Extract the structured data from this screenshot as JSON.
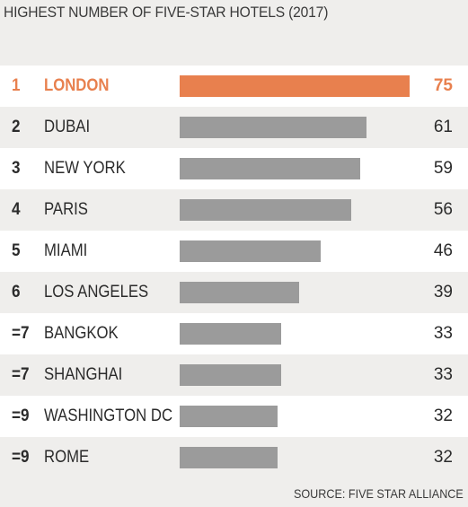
{
  "chart_data": {
    "type": "bar",
    "title": "HIGHEST NUMBER OF FIVE-STAR HOTELS (2017)",
    "source": "SOURCE: FIVE STAR ALLIANCE",
    "colors": {
      "highlight": "#e8804e",
      "bar": "#9b9b9b",
      "alt_row": "#ffffff",
      "background": "#efeeec"
    },
    "rows": [
      {
        "rank": "1",
        "city": "LONDON",
        "value": 75,
        "highlight": true
      },
      {
        "rank": "2",
        "city": "DUBAI",
        "value": 61
      },
      {
        "rank": "3",
        "city": "NEW YORK",
        "value": 59
      },
      {
        "rank": "4",
        "city": "PARIS",
        "value": 56
      },
      {
        "rank": "5",
        "city": "MIAMI",
        "value": 46
      },
      {
        "rank": "6",
        "city": "LOS ANGELES",
        "value": 39
      },
      {
        "rank": "=7",
        "city": "BANGKOK",
        "value": 33
      },
      {
        "rank": "=7",
        "city": "SHANGHAI",
        "value": 33
      },
      {
        "rank": "=9",
        "city": "WASHINGTON DC",
        "value": 32
      },
      {
        "rank": "=9",
        "city": "ROME",
        "value": 32
      }
    ]
  }
}
